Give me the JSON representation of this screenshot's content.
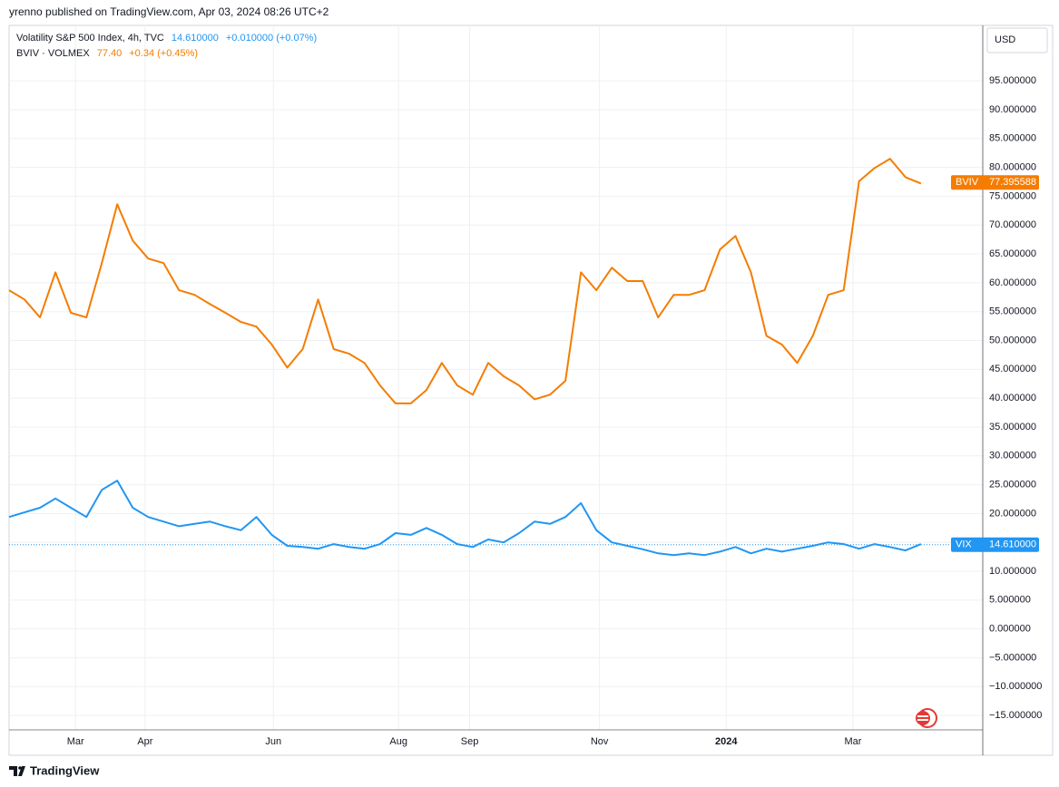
{
  "header": {
    "published": "yrenno published on TradingView.com, Apr 03, 2024 08:26 UTC+2",
    "currency": "USD",
    "brand": "TradingView"
  },
  "chart_data": {
    "type": "line",
    "xlim": [
      0,
      63
    ],
    "xticks": [
      {
        "value": 4.3,
        "label": "Mar"
      },
      {
        "value": 8.8,
        "label": "Apr"
      },
      {
        "value": 17.1,
        "label": "Jun"
      },
      {
        "value": 25.2,
        "label": "Aug"
      },
      {
        "value": 29.8,
        "label": "Sep"
      },
      {
        "value": 38.2,
        "label": "Nov"
      },
      {
        "value": 46.4,
        "label": "2024"
      },
      {
        "value": 54.6,
        "label": "Mar"
      }
    ],
    "ylim": [
      -17.5,
      104.3
    ],
    "yticks": [
      {
        "value": 95,
        "label": "95.000000"
      },
      {
        "value": 90,
        "label": "90.000000"
      },
      {
        "value": 85,
        "label": "85.000000"
      },
      {
        "value": 80,
        "label": "80.000000"
      },
      {
        "value": 75,
        "label": "75.000000"
      },
      {
        "value": 70,
        "label": "70.000000"
      },
      {
        "value": 65,
        "label": "65.000000"
      },
      {
        "value": 60,
        "label": "60.000000"
      },
      {
        "value": 55,
        "label": "55.000000"
      },
      {
        "value": 50,
        "label": "50.000000"
      },
      {
        "value": 45,
        "label": "45.000000"
      },
      {
        "value": 40,
        "label": "40.000000"
      },
      {
        "value": 35,
        "label": "35.000000"
      },
      {
        "value": 30,
        "label": "30.000000"
      },
      {
        "value": 25,
        "label": "25.000000"
      },
      {
        "value": 20,
        "label": "20.000000"
      },
      {
        "value": 15,
        "label": "15.000000"
      },
      {
        "value": 10,
        "label": "10.000000"
      },
      {
        "value": 5,
        "label": "5.000000"
      },
      {
        "value": 0,
        "label": "0.000000"
      },
      {
        "value": -5,
        "label": "−5.000000"
      },
      {
        "value": -10,
        "label": "−10.000000"
      },
      {
        "value": -15,
        "label": "−15.000000"
      }
    ],
    "grid": true,
    "series": [
      {
        "name": "Volatility S&P 500 Index, 4h, TVC",
        "short": "VIX",
        "color": "#2196f3",
        "legend_value": "14.610000",
        "change": "+0.010000 (+0.07%)",
        "last": {
          "value": 14.61,
          "label": "14.610000"
        },
        "values": [
          19.4,
          20.2,
          21,
          22.6,
          21,
          19.4,
          24.1,
          25.7,
          21,
          19.4,
          18.6,
          17.8,
          18.2,
          18.6,
          17.8,
          17.1,
          19.4,
          16.3,
          14.4,
          14.2,
          13.9,
          14.7,
          14.2,
          13.9,
          14.7,
          16.6,
          16.3,
          17.5,
          16.3,
          14.7,
          14.2,
          15.5,
          15,
          16.6,
          18.6,
          18.2,
          19.4,
          21.8,
          17.1,
          15,
          14.4,
          13.8,
          13.1,
          12.8,
          13.1,
          12.8,
          13.4,
          14.2,
          13.1,
          13.9,
          13.4,
          13.9,
          14.4,
          15,
          14.7,
          13.9,
          14.7,
          14.2,
          13.6,
          14.7
        ]
      },
      {
        "name": "BVIV · VOLMEX",
        "short": "BVIV",
        "color": "#f57c00",
        "legend_value": "77.40",
        "change": "+0.34 (+0.45%)",
        "last": 77.395588,
        "values": [
          58.7,
          57.1,
          54,
          61.8,
          54.8,
          54,
          63.4,
          73.6,
          67.3,
          64.2,
          63.4,
          58.7,
          57.9,
          56.3,
          54.8,
          53.2,
          52.4,
          49.3,
          45.3,
          48.5,
          57.1,
          48.5,
          47.7,
          46.1,
          42.2,
          39.1,
          39.1,
          41.4,
          46.1,
          42.2,
          40.6,
          46.1,
          43.8,
          42.2,
          39.8,
          40.6,
          43,
          61.8,
          58.7,
          62.6,
          60.3,
          60.3,
          54,
          57.9,
          57.9,
          58.7,
          65.8,
          68.1,
          61.8,
          50.8,
          49.3,
          46.1,
          50.8,
          57.9,
          58.7,
          77.6,
          79.9,
          81.5,
          78.3,
          77.2
        ]
      }
    ]
  }
}
